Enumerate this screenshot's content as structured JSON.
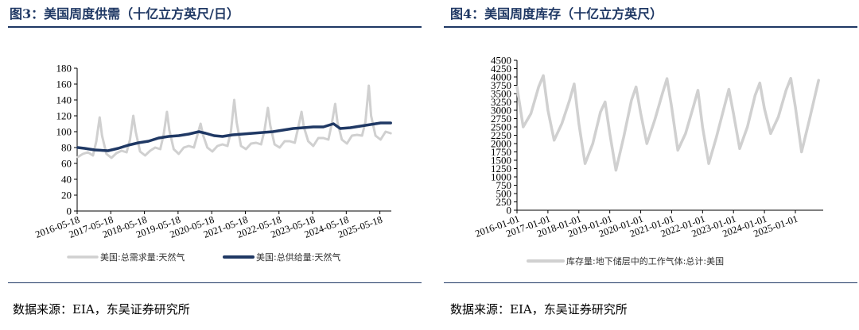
{
  "left": {
    "title": "图3：美国周度供需（十亿立方英尺/日）",
    "source": "数据来源：EIA，东吴证券研究所"
  },
  "right": {
    "title": "图4：美国周度库存（十亿立方英尺）",
    "source": "数据来源：EIA，东吴证券研究所"
  },
  "colors": {
    "demand": "#d0d0d0",
    "supply": "#1f3864",
    "storage": "#d0d0d0",
    "rule": "#1f3864"
  },
  "chart_data": [
    {
      "type": "line",
      "title": "",
      "ylim": [
        0,
        180
      ],
      "yticks": [
        "0",
        "20",
        "40",
        "60",
        "80",
        "100",
        "120",
        "140",
        "160",
        "180"
      ],
      "xlim": [
        2016.38,
        2025.72
      ],
      "xticks": [
        {
          "x": 2016.38,
          "label": "2016-05-18"
        },
        {
          "x": 2017.38,
          "label": "2017-05-18"
        },
        {
          "x": 2018.38,
          "label": "2018-05-18"
        },
        {
          "x": 2019.38,
          "label": "2019-05-18"
        },
        {
          "x": 2020.38,
          "label": "2020-05-18"
        },
        {
          "x": 2021.38,
          "label": "2021-05-18"
        },
        {
          "x": 2022.38,
          "label": "2022-05-18"
        },
        {
          "x": 2023.38,
          "label": "2023-05-18"
        },
        {
          "x": 2024.38,
          "label": "2024-05-18"
        },
        {
          "x": 2025.38,
          "label": "2025-05-18"
        }
      ],
      "legend_position": "bottom",
      "series": [
        {
          "name": "美国:总需求量:天然气",
          "x": [
            2016.4,
            2016.55,
            2016.7,
            2016.85,
            2016.95,
            2017.05,
            2017.12,
            2017.25,
            2017.4,
            2017.55,
            2017.7,
            2017.85,
            2017.95,
            2018.05,
            2018.12,
            2018.25,
            2018.4,
            2018.55,
            2018.7,
            2018.85,
            2018.95,
            2019.05,
            2019.12,
            2019.25,
            2019.4,
            2019.55,
            2019.7,
            2019.85,
            2019.95,
            2020.05,
            2020.12,
            2020.25,
            2020.4,
            2020.55,
            2020.7,
            2020.85,
            2020.95,
            2021.05,
            2021.12,
            2021.25,
            2021.4,
            2021.55,
            2021.7,
            2021.85,
            2021.95,
            2022.05,
            2022.12,
            2022.25,
            2022.4,
            2022.55,
            2022.7,
            2022.85,
            2022.95,
            2023.05,
            2023.12,
            2023.25,
            2023.4,
            2023.55,
            2023.7,
            2023.85,
            2023.95,
            2024.05,
            2024.12,
            2024.25,
            2024.4,
            2024.55,
            2024.7,
            2024.85,
            2024.95,
            2025.05,
            2025.12,
            2025.25,
            2025.4,
            2025.55,
            2025.7
          ],
          "values": [
            68,
            72,
            74,
            70,
            88,
            118,
            95,
            72,
            67,
            73,
            76,
            74,
            90,
            120,
            100,
            75,
            70,
            76,
            80,
            78,
            96,
            125,
            102,
            78,
            72,
            80,
            82,
            80,
            95,
            110,
            96,
            80,
            75,
            82,
            84,
            82,
            100,
            140,
            112,
            82,
            78,
            85,
            86,
            84,
            102,
            130,
            108,
            84,
            80,
            88,
            88,
            86,
            105,
            125,
            106,
            88,
            82,
            92,
            92,
            90,
            110,
            135,
            112,
            90,
            85,
            95,
            96,
            95,
            112,
            158,
            120,
            95,
            90,
            100,
            98
          ]
        },
        {
          "name": "美国:总供给量:天然气",
          "x": [
            2016.4,
            2016.6,
            2016.9,
            2017.3,
            2017.6,
            2017.9,
            2018.2,
            2018.5,
            2018.8,
            2019.1,
            2019.4,
            2019.7,
            2020.0,
            2020.2,
            2020.45,
            2020.7,
            2021.0,
            2021.3,
            2021.6,
            2021.9,
            2022.2,
            2022.5,
            2022.8,
            2023.1,
            2023.4,
            2023.7,
            2024.0,
            2024.2,
            2024.5,
            2024.8,
            2025.1,
            2025.4,
            2025.7
          ],
          "values": [
            80,
            79,
            77,
            76,
            79,
            83,
            86,
            88,
            92,
            94,
            95,
            97,
            100,
            98,
            95,
            94,
            96,
            97,
            98,
            99,
            100,
            102,
            104,
            105,
            106,
            106,
            110,
            104,
            105,
            107,
            109,
            111,
            111
          ]
        }
      ]
    },
    {
      "type": "line",
      "title": "",
      "ylim": [
        0,
        4500
      ],
      "yticks": [
        "0",
        "250",
        "500",
        "750",
        "1000",
        "1250",
        "1500",
        "1750",
        "2000",
        "2250",
        "2500",
        "2750",
        "3000",
        "3250",
        "3500",
        "3750",
        "4000",
        "4250",
        "4500"
      ],
      "xlim": [
        2016.0,
        2025.9
      ],
      "xticks": [
        {
          "x": 2016.0,
          "label": "2016-01-01"
        },
        {
          "x": 2017.0,
          "label": "2017-01-01"
        },
        {
          "x": 2018.0,
          "label": "2018-01-01"
        },
        {
          "x": 2019.0,
          "label": "2019-01-01"
        },
        {
          "x": 2020.0,
          "label": "2020-01-01"
        },
        {
          "x": 2021.0,
          "label": "2021-01-01"
        },
        {
          "x": 2022.0,
          "label": "2022-01-01"
        },
        {
          "x": 2023.0,
          "label": "2023-01-01"
        },
        {
          "x": 2024.0,
          "label": "2024-01-01"
        },
        {
          "x": 2025.0,
          "label": "2025-01-01"
        }
      ],
      "legend_position": "bottom",
      "series": [
        {
          "name": "库存量:地下储层中的工作气体:总计:美国",
          "x": [
            2016.0,
            2016.2,
            2016.45,
            2016.7,
            2016.85,
            2017.0,
            2017.2,
            2017.45,
            2017.7,
            2017.85,
            2018.0,
            2018.2,
            2018.45,
            2018.7,
            2018.85,
            2019.0,
            2019.2,
            2019.45,
            2019.7,
            2019.85,
            2020.0,
            2020.2,
            2020.45,
            2020.7,
            2020.85,
            2021.0,
            2021.2,
            2021.45,
            2021.7,
            2021.85,
            2022.0,
            2022.2,
            2022.45,
            2022.7,
            2022.85,
            2023.0,
            2023.2,
            2023.45,
            2023.7,
            2023.85,
            2024.0,
            2024.2,
            2024.45,
            2024.7,
            2024.85,
            2025.0,
            2025.2,
            2025.45,
            2025.75
          ],
          "values": [
            3700,
            2500,
            2900,
            3700,
            4040,
            3000,
            2100,
            2600,
            3300,
            3790,
            2600,
            1400,
            2000,
            2950,
            3250,
            2300,
            1200,
            2200,
            3300,
            3700,
            2900,
            2000,
            2700,
            3500,
            3950,
            3100,
            1800,
            2300,
            3100,
            3600,
            2500,
            1400,
            2200,
            3100,
            3630,
            2900,
            1850,
            2500,
            3450,
            3820,
            3050,
            2300,
            2800,
            3600,
            3960,
            3100,
            1750,
            2700,
            3900
          ]
        }
      ]
    }
  ]
}
